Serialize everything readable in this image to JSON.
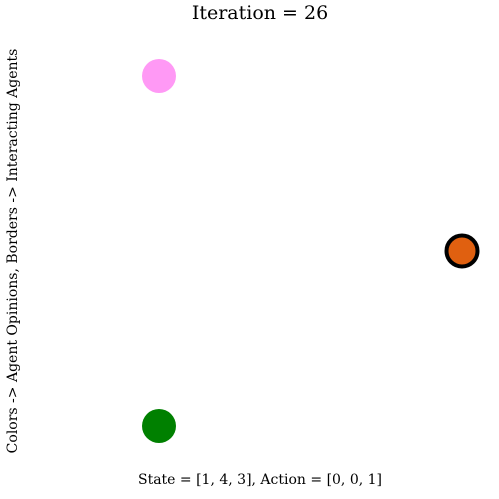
{
  "chart_data": {
    "type": "scatter",
    "title": "Iteration = 26",
    "xlabel": "State = [1, 4, 3], Action = [0, 0, 1]",
    "ylabel": "Colors -> Agent Opinions, Borders -> Interacting Agents",
    "xlim": [
      0,
      1
    ],
    "ylim": [
      0,
      1
    ],
    "grid": false,
    "points": [
      {
        "x": 0.0,
        "y": 1.0,
        "color": "#ff99f5",
        "interacting": false
      },
      {
        "x": 1.0,
        "y": 0.5,
        "color": "#e06010",
        "interacting": true
      },
      {
        "x": 0.0,
        "y": 0.0,
        "color": "#008000",
        "interacting": false
      }
    ],
    "border_color": "#000000"
  }
}
